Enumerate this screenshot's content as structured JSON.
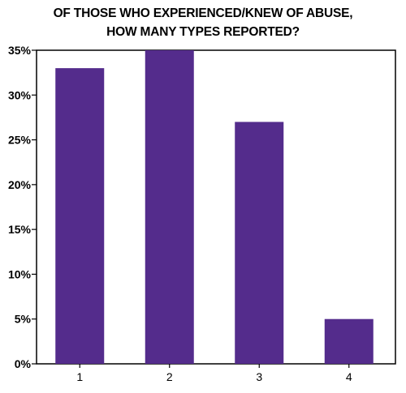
{
  "chart_data": {
    "type": "bar",
    "title_lines": [
      "OF THOSE WHO EXPERIENCED/KNEW OF ABUSE,",
      "HOW MANY TYPES REPORTED?"
    ],
    "categories": [
      "1",
      "2",
      "3",
      "4"
    ],
    "values": [
      33,
      35,
      27,
      5
    ],
    "ylim": [
      0,
      35
    ],
    "yticks": [
      "0%",
      "5%",
      "10%",
      "15%",
      "20%",
      "25%",
      "30%",
      "35%"
    ],
    "ytick_values": [
      0,
      5,
      10,
      15,
      20,
      25,
      30,
      35
    ],
    "bar_color": "#542c8c",
    "grid": false,
    "legend": "none"
  }
}
